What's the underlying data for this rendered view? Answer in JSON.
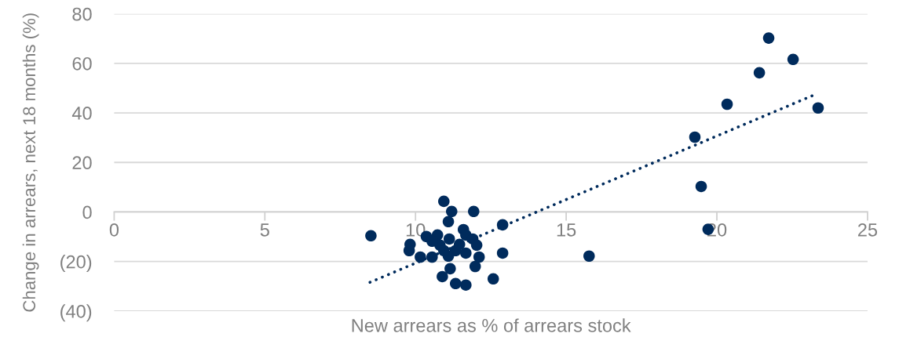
{
  "chart_data": {
    "type": "scatter",
    "xlabel": "New arrears as % of arrears stock",
    "ylabel": "Change in arrears, next 18 months (%)",
    "series": [
      {
        "color": "#002b5c",
        "marker": "circle",
        "x": [
          10.94,
          11.2,
          11.93,
          11.09,
          11.59,
          11.67,
          11.9,
          12.03,
          12.11,
          11.98,
          12.89,
          12.89,
          12.58,
          11.67,
          11.33,
          10.89,
          11.15,
          11.67,
          11.33,
          11.09,
          11.12,
          10.73,
          10.36,
          10.55,
          10.16,
          9.82,
          9.79,
          10.81,
          10.94,
          11.46,
          10.55,
          8.52,
          15.76,
          21.72,
          22.53,
          21.41,
          20.34,
          23.36,
          19.27,
          19.48,
          19.71
        ],
        "values": [
          4.3,
          0.2,
          0.2,
          -3.9,
          -7.1,
          -9.3,
          -10.9,
          -13.4,
          -18.2,
          -22.0,
          -5.2,
          -16.6,
          -27.0,
          -29.5,
          -28.9,
          -26.1,
          -22.9,
          -16.6,
          -15.6,
          -17.8,
          -10.9,
          -9.3,
          -9.9,
          -18.2,
          -18.2,
          -13.1,
          -15.6,
          -13.4,
          -15.6,
          -13.1,
          -11.8,
          -9.6,
          -17.8,
          70.2,
          61.6,
          56.2,
          43.5,
          42.0,
          30.2,
          10.3,
          -7.0
        ]
      },
      {
        "type": "line",
        "color": "#002b5c",
        "line_style": "dotted",
        "x": [
          8.49,
          23.18
        ],
        "values": [
          -28.4,
          47.0
        ]
      }
    ],
    "xlim": [
      0,
      25
    ],
    "xticks": [
      0,
      5,
      10,
      15,
      20,
      25
    ],
    "ylim": [
      -40,
      80
    ],
    "yticks": [
      {
        "value": -40,
        "label": "(40)"
      },
      {
        "value": -20,
        "label": "(20)"
      },
      0,
      20,
      40,
      60,
      80
    ],
    "grid": "y",
    "legend": false
  }
}
